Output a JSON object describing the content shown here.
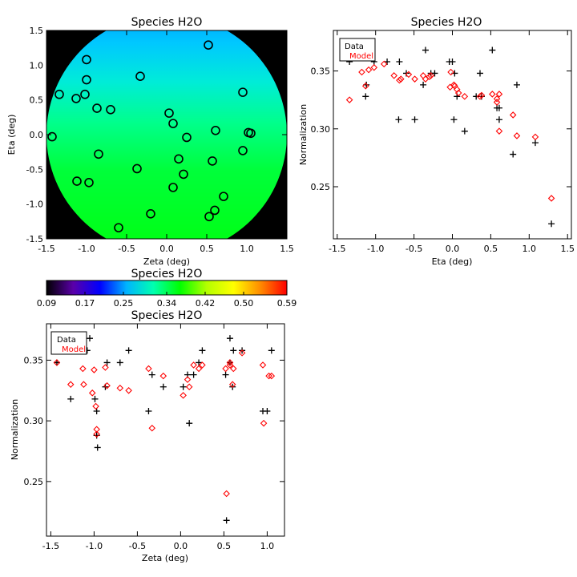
{
  "colors": {
    "data_marker": "#000000",
    "model_marker": "#ff0000",
    "frame": "#000000"
  },
  "chart_data": [
    {
      "id": "map",
      "type": "heatmap",
      "title": "Species H2O",
      "xlabel": "Zeta (deg)",
      "ylabel": "Eta (deg)",
      "xlim": [
        -1.5,
        1.5
      ],
      "ylim": [
        -1.5,
        1.5
      ],
      "xticks": [
        "-1.5",
        "-1.0",
        "-0.5",
        "0.0",
        "0.5",
        "1.0",
        "1.5"
      ],
      "yticks": [
        "-1.5",
        "-1.0",
        "-0.5",
        "0.0",
        "0.5",
        "1.0",
        "1.5"
      ],
      "field_radius": 1.5,
      "points": [
        [
          0.52,
          1.29
        ],
        [
          -1.0,
          1.08
        ],
        [
          -0.33,
          0.84
        ],
        [
          -1.0,
          0.79
        ],
        [
          0.95,
          0.61
        ],
        [
          -1.34,
          0.58
        ],
        [
          -1.02,
          0.58
        ],
        [
          -1.13,
          0.52
        ],
        [
          -0.87,
          0.38
        ],
        [
          -0.7,
          0.36
        ],
        [
          0.03,
          0.31
        ],
        [
          0.08,
          0.16
        ],
        [
          0.61,
          0.06
        ],
        [
          1.02,
          0.03
        ],
        [
          1.05,
          0.02
        ],
        [
          -1.43,
          -0.03
        ],
        [
          0.25,
          -0.04
        ],
        [
          0.95,
          -0.23
        ],
        [
          -0.85,
          -0.28
        ],
        [
          0.15,
          -0.35
        ],
        [
          0.57,
          -0.38
        ],
        [
          -0.37,
          -0.49
        ],
        [
          0.21,
          -0.57
        ],
        [
          -1.12,
          -0.67
        ],
        [
          -0.97,
          -0.69
        ],
        [
          0.08,
          -0.76
        ],
        [
          0.71,
          -0.89
        ],
        [
          0.6,
          -1.09
        ],
        [
          -0.2,
          -1.14
        ],
        [
          0.53,
          -1.18
        ],
        [
          -0.6,
          -1.34
        ]
      ],
      "colorbar": {
        "title": "Species H2O",
        "ticks": [
          "0.09",
          "0.17",
          "0.25",
          "0.34",
          "0.42",
          "0.50",
          "0.59"
        ],
        "range": [
          0.09,
          0.59
        ],
        "colors": [
          "#000000",
          "#5a00a8",
          "#0000ff",
          "#00b4ff",
          "#00ffb0",
          "#00ff00",
          "#b4ff00",
          "#ffff00",
          "#ff8c00",
          "#ff0000"
        ]
      }
    },
    {
      "id": "eta",
      "type": "scatter",
      "title": "Species H2O",
      "xlabel": "Eta (deg)",
      "ylabel": "Normalization",
      "xlim": [
        -1.55,
        1.55
      ],
      "ylim": [
        0.205,
        0.385
      ],
      "xticks": [
        "-1.5",
        "-1.0",
        "-0.5",
        "0.0",
        "0.5",
        "1.0",
        "1.5"
      ],
      "yticks": [
        "0.25",
        "0.30",
        "0.35"
      ],
      "legend": {
        "position": "top-left",
        "entries": [
          "Data",
          "Model"
        ]
      },
      "series": [
        {
          "name": "Data",
          "marker": "plus",
          "points": [
            [
              -1.34,
              0.358
            ],
            [
              -1.13,
              0.328
            ],
            [
              -1.12,
              0.338
            ],
            [
              -1.02,
              0.358
            ],
            [
              -0.85,
              0.358
            ],
            [
              -0.7,
              0.308
            ],
            [
              -0.69,
              0.358
            ],
            [
              -0.6,
              0.348
            ],
            [
              -0.49,
              0.308
            ],
            [
              -0.38,
              0.338
            ],
            [
              -0.35,
              0.368
            ],
            [
              -0.28,
              0.348
            ],
            [
              -0.23,
              0.348
            ],
            [
              -0.04,
              0.358
            ],
            [
              0.0,
              0.358
            ],
            [
              0.02,
              0.308
            ],
            [
              0.03,
              0.348
            ],
            [
              0.06,
              0.328
            ],
            [
              0.16,
              0.298
            ],
            [
              0.31,
              0.328
            ],
            [
              0.36,
              0.348
            ],
            [
              0.38,
              0.328
            ],
            [
              0.52,
              0.368
            ],
            [
              0.58,
              0.318
            ],
            [
              0.61,
              0.318
            ],
            [
              0.61,
              0.308
            ],
            [
              0.79,
              0.278
            ],
            [
              0.84,
              0.338
            ],
            [
              1.08,
              0.288
            ],
            [
              1.29,
              0.218
            ]
          ]
        },
        {
          "name": "Model",
          "marker": "diamond",
          "points": [
            [
              -1.34,
              0.325
            ],
            [
              -1.18,
              0.349
            ],
            [
              -1.13,
              0.337
            ],
            [
              -1.09,
              0.351
            ],
            [
              -1.02,
              0.353
            ],
            [
              -0.89,
              0.356
            ],
            [
              -0.76,
              0.346
            ],
            [
              -0.69,
              0.342
            ],
            [
              -0.67,
              0.343
            ],
            [
              -0.57,
              0.347
            ],
            [
              -0.49,
              0.343
            ],
            [
              -0.38,
              0.346
            ],
            [
              -0.35,
              0.343
            ],
            [
              -0.3,
              0.345
            ],
            [
              -0.28,
              0.346
            ],
            [
              -0.03,
              0.336
            ],
            [
              -0.02,
              0.349
            ],
            [
              0.02,
              0.338
            ],
            [
              0.03,
              0.337
            ],
            [
              0.06,
              0.334
            ],
            [
              0.08,
              0.331
            ],
            [
              0.16,
              0.328
            ],
            [
              0.36,
              0.328
            ],
            [
              0.38,
              0.329
            ],
            [
              0.52,
              0.33
            ],
            [
              0.58,
              0.326
            ],
            [
              0.58,
              0.323
            ],
            [
              0.61,
              0.33
            ],
            [
              0.61,
              0.298
            ],
            [
              0.79,
              0.312
            ],
            [
              0.84,
              0.294
            ],
            [
              1.08,
              0.293
            ],
            [
              1.29,
              0.24
            ]
          ]
        }
      ]
    },
    {
      "id": "zeta",
      "type": "scatter",
      "title": "Species H2O",
      "xlabel": "Zeta (deg)",
      "ylabel": "Normalization",
      "xlim": [
        -1.55,
        1.2
      ],
      "ylim": [
        0.205,
        0.38
      ],
      "xticks": [
        "-1.5",
        "-1.0",
        "-0.5",
        "0.0",
        "0.5",
        "1.0"
      ],
      "yticks": [
        "0.25",
        "0.30",
        "0.35"
      ],
      "legend": {
        "position": "top-left",
        "entries": [
          "Data",
          "Model"
        ]
      },
      "series": [
        {
          "name": "Data",
          "marker": "plus",
          "points": [
            [
              -1.43,
              0.348
            ],
            [
              -1.27,
              0.318
            ],
            [
              -1.08,
              0.358
            ],
            [
              -1.05,
              0.368
            ],
            [
              -0.99,
              0.318
            ],
            [
              -0.97,
              0.308
            ],
            [
              -0.97,
              0.288
            ],
            [
              -0.96,
              0.278
            ],
            [
              -0.87,
              0.328
            ],
            [
              -0.85,
              0.348
            ],
            [
              -0.7,
              0.348
            ],
            [
              -0.6,
              0.358
            ],
            [
              -0.37,
              0.308
            ],
            [
              -0.33,
              0.338
            ],
            [
              -0.2,
              0.328
            ],
            [
              0.03,
              0.328
            ],
            [
              0.08,
              0.338
            ],
            [
              0.1,
              0.298
            ],
            [
              0.15,
              0.338
            ],
            [
              0.21,
              0.348
            ],
            [
              0.25,
              0.358
            ],
            [
              0.52,
              0.338
            ],
            [
              0.53,
              0.218
            ],
            [
              0.57,
              0.368
            ],
            [
              0.57,
              0.348
            ],
            [
              0.6,
              0.328
            ],
            [
              0.61,
              0.358
            ],
            [
              0.71,
              0.358
            ],
            [
              0.95,
              0.308
            ],
            [
              1.0,
              0.308
            ],
            [
              1.05,
              0.358
            ]
          ]
        },
        {
          "name": "Model",
          "marker": "diamond",
          "points": [
            [
              -1.43,
              0.348
            ],
            [
              -1.27,
              0.33
            ],
            [
              -1.13,
              0.343
            ],
            [
              -1.12,
              0.33
            ],
            [
              -1.02,
              0.323
            ],
            [
              -1.0,
              0.342
            ],
            [
              -0.98,
              0.312
            ],
            [
              -0.97,
              0.293
            ],
            [
              -0.97,
              0.289
            ],
            [
              -0.87,
              0.344
            ],
            [
              -0.85,
              0.329
            ],
            [
              -0.7,
              0.327
            ],
            [
              -0.6,
              0.325
            ],
            [
              -0.37,
              0.343
            ],
            [
              -0.33,
              0.294
            ],
            [
              -0.2,
              0.337
            ],
            [
              0.03,
              0.321
            ],
            [
              0.08,
              0.334
            ],
            [
              0.1,
              0.328
            ],
            [
              0.15,
              0.346
            ],
            [
              0.21,
              0.343
            ],
            [
              0.25,
              0.346
            ],
            [
              0.52,
              0.343
            ],
            [
              0.53,
              0.24
            ],
            [
              0.57,
              0.346
            ],
            [
              0.57,
              0.348
            ],
            [
              0.6,
              0.33
            ],
            [
              0.61,
              0.343
            ],
            [
              0.71,
              0.356
            ],
            [
              0.95,
              0.346
            ],
            [
              0.96,
              0.298
            ],
            [
              1.02,
              0.337
            ],
            [
              1.05,
              0.337
            ]
          ]
        }
      ]
    }
  ]
}
